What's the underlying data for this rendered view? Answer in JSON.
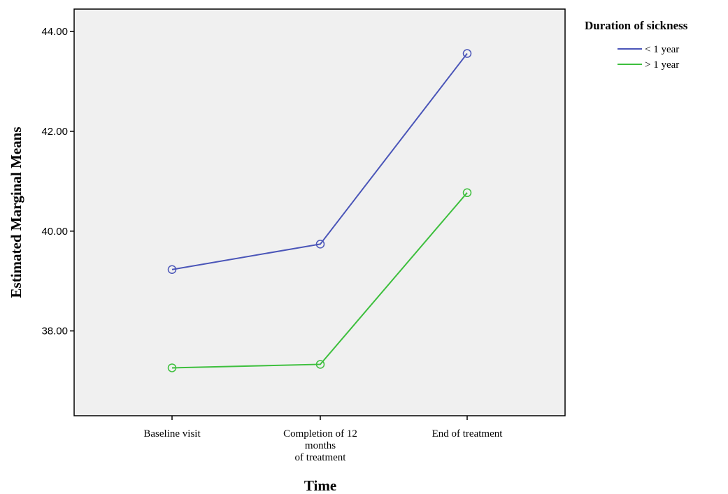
{
  "chart_data": {
    "type": "line",
    "xlabel": "Time",
    "ylabel": "Estimated Marginal Means",
    "categories": [
      [
        "Baseline visit"
      ],
      [
        "Completion of 12",
        "months",
        "of treatment"
      ],
      [
        "End of treatment"
      ]
    ],
    "y_ticks": [
      "38.00",
      "40.00",
      "42.00",
      "44.00"
    ],
    "y_tick_values": [
      38,
      40,
      42,
      44
    ],
    "ylim": [
      36.3,
      44.45
    ],
    "grid": false,
    "legend": {
      "title": "Duration of sickness",
      "placement": "right"
    },
    "series": [
      {
        "name": "< 1 year",
        "color": "#4a55b8",
        "values": [
          39.23,
          39.74,
          43.56
        ]
      },
      {
        "name": "> 1 year",
        "color": "#3dbf3d",
        "values": [
          37.26,
          37.33,
          40.77
        ]
      }
    ],
    "plot_background": "#f0f0f0"
  }
}
